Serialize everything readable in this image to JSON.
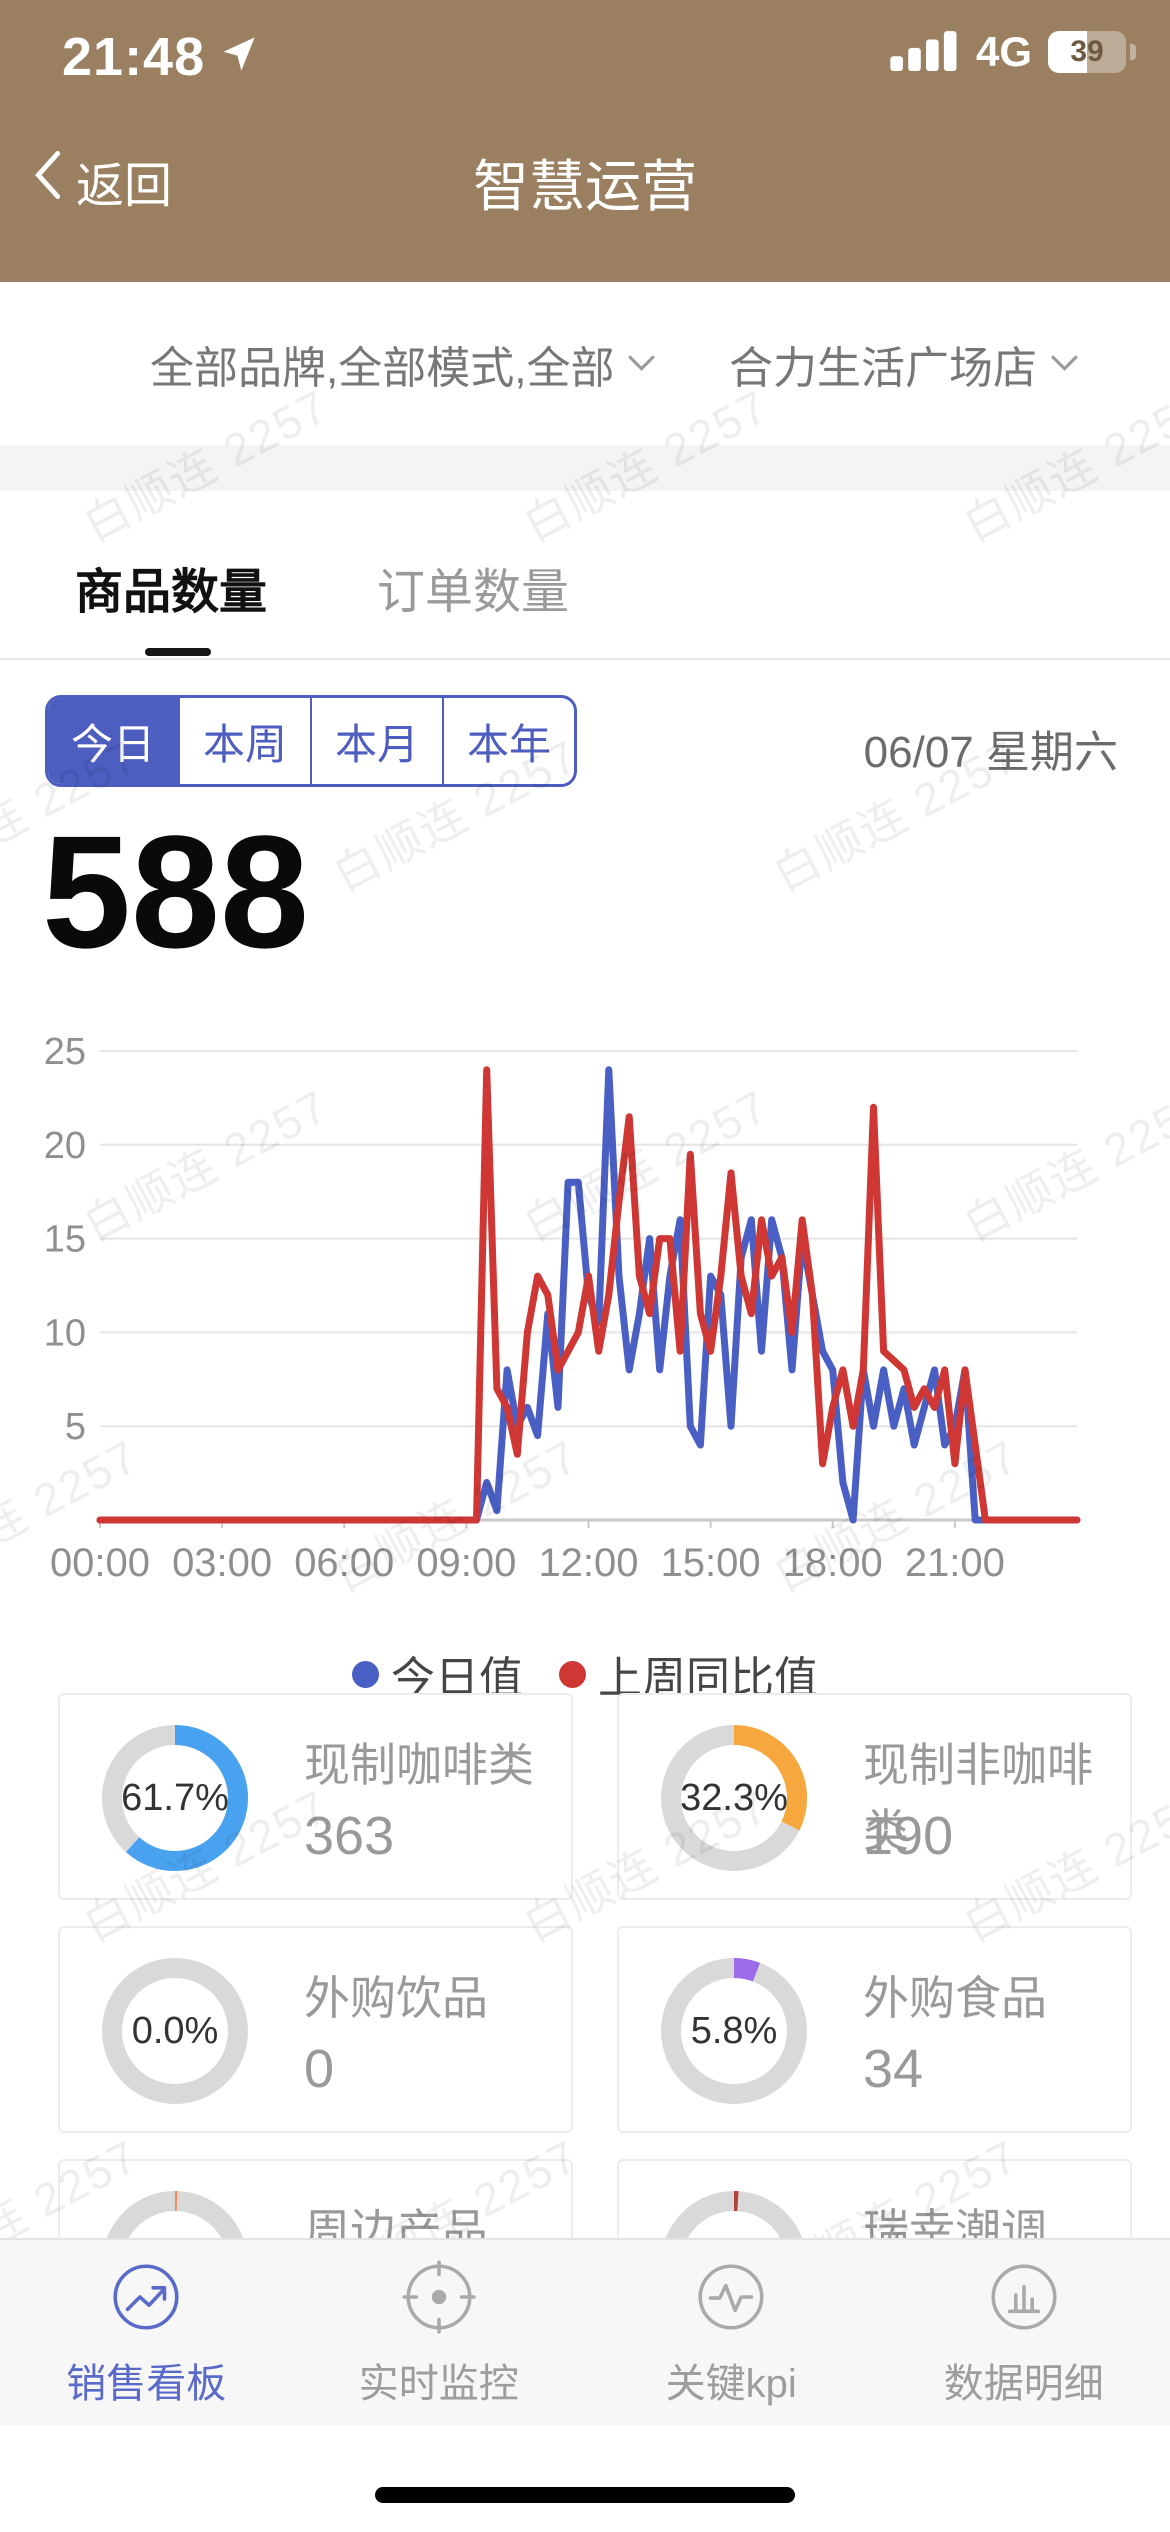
{
  "status_bar": {
    "time": "21:48",
    "network": "4G",
    "battery_percent": "39"
  },
  "nav": {
    "back_label": "返回",
    "title": "智慧运营"
  },
  "filters": {
    "category_filter": "全部品牌,全部模式,全部",
    "store_filter": "合力生活广场店"
  },
  "tabs": [
    {
      "label": "商品数量",
      "active": true
    },
    {
      "label": "订单数量",
      "active": false
    }
  ],
  "period_buttons": [
    {
      "label": "今日",
      "active": true
    },
    {
      "label": "本周",
      "active": false
    },
    {
      "label": "本月",
      "active": false
    },
    {
      "label": "本年",
      "active": false
    }
  ],
  "date_label": "06/07 星期六",
  "total_value": "588",
  "chart_data": {
    "type": "line",
    "title": "",
    "xlabel": "",
    "ylabel": "",
    "x_unit": "hours",
    "x_start": 0,
    "x_step": 0.25,
    "x_end": 24,
    "x_ticks": [
      "00:00",
      "03:00",
      "06:00",
      "09:00",
      "12:00",
      "15:00",
      "18:00",
      "21:00"
    ],
    "x_tick_hours": [
      0,
      3,
      6,
      9,
      12,
      15,
      18,
      21
    ],
    "y_ticks": [
      5,
      10,
      15,
      20,
      25
    ],
    "ylim": [
      0,
      25
    ],
    "grid": true,
    "legend_position": "bottom",
    "series": [
      {
        "name": "今日值",
        "color": "#4A5FC4",
        "values": [
          0,
          0,
          0,
          0,
          0,
          0,
          0,
          0,
          0,
          0,
          0,
          0,
          0,
          0,
          0,
          0,
          0,
          0,
          0,
          0,
          0,
          0,
          0,
          0,
          0,
          0,
          0,
          0,
          0,
          0,
          0,
          0,
          0,
          0,
          0,
          0,
          0,
          0,
          2,
          0.5,
          8,
          5,
          6,
          4.5,
          11,
          6,
          18,
          18,
          12,
          10.5,
          24,
          13,
          8,
          11,
          15,
          8,
          13,
          16,
          5,
          4,
          13,
          12,
          5,
          14,
          16,
          9,
          16,
          14,
          8,
          15,
          12,
          9,
          8,
          2,
          0,
          8,
          5,
          8,
          5,
          7,
          4,
          6,
          8,
          4,
          5,
          8,
          0,
          0,
          0,
          0,
          0,
          0,
          0,
          0,
          0,
          0,
          0
        ]
      },
      {
        "name": "上周同比值",
        "color": "#CE3734",
        "values": [
          0,
          0,
          0,
          0,
          0,
          0,
          0,
          0,
          0,
          0,
          0,
          0,
          0,
          0,
          0,
          0,
          0,
          0,
          0,
          0,
          0,
          0,
          0,
          0,
          0,
          0,
          0,
          0,
          0,
          0,
          0,
          0,
          0,
          0,
          0,
          0,
          0,
          0,
          24,
          7,
          6,
          3.5,
          10,
          13,
          12,
          8,
          9,
          10,
          13,
          9,
          12,
          17,
          21.5,
          13,
          11,
          15,
          15,
          9,
          19.5,
          11,
          9,
          13,
          18.5,
          13,
          11,
          16,
          13,
          14,
          10,
          16,
          12,
          3,
          6,
          8,
          5,
          8,
          22,
          9,
          8.5,
          8,
          6,
          7,
          6,
          8,
          3,
          8,
          4,
          0,
          0,
          0,
          0,
          0,
          0,
          0,
          0,
          0,
          0
        ]
      }
    ]
  },
  "legend": [
    {
      "label": "今日值",
      "color": "#4A5FC4"
    },
    {
      "label": "上周同比值",
      "color": "#CE3734"
    }
  ],
  "category_cards": [
    {
      "percent": "61.7%",
      "fraction": 0.617,
      "label": "现制咖啡类",
      "value": "363",
      "color": "#49A2F0",
      "partial": false
    },
    {
      "percent": "32.3%",
      "fraction": 0.323,
      "label": "现制非咖啡类",
      "value": "190",
      "color": "#F6A83F",
      "partial": false
    },
    {
      "percent": "0.0%",
      "fraction": 0,
      "label": "外购饮品",
      "value": "0",
      "color": "#D9D9D9",
      "partial": false
    },
    {
      "percent": "5.8%",
      "fraction": 0.058,
      "label": "外购食品",
      "value": "34",
      "color": "#9C6CE9",
      "partial": false
    },
    {
      "fraction": 0.005,
      "label": "周边产品",
      "color": "#F0865A",
      "partial": true
    },
    {
      "fraction": 0.01,
      "label": "瑞幸潮调",
      "color": "#B5413C",
      "partial": true
    }
  ],
  "bottom_nav": [
    {
      "label": "销售看板",
      "icon": "trend-chart-icon",
      "active": true
    },
    {
      "label": "实时监控",
      "icon": "monitor-target-icon",
      "active": false
    },
    {
      "label": "关键kpi",
      "icon": "pulse-icon",
      "active": false
    },
    {
      "label": "数据明细",
      "icon": "bar-chart-icon",
      "active": false
    }
  ],
  "watermark": {
    "text": "白顺连 2257"
  },
  "colors": {
    "header_brown": "#9A8060",
    "accent_blue": "#4D5DC0",
    "chart_blue": "#4A5FC4",
    "chart_red": "#CE3734",
    "donut_track": "#D9D9D9"
  }
}
